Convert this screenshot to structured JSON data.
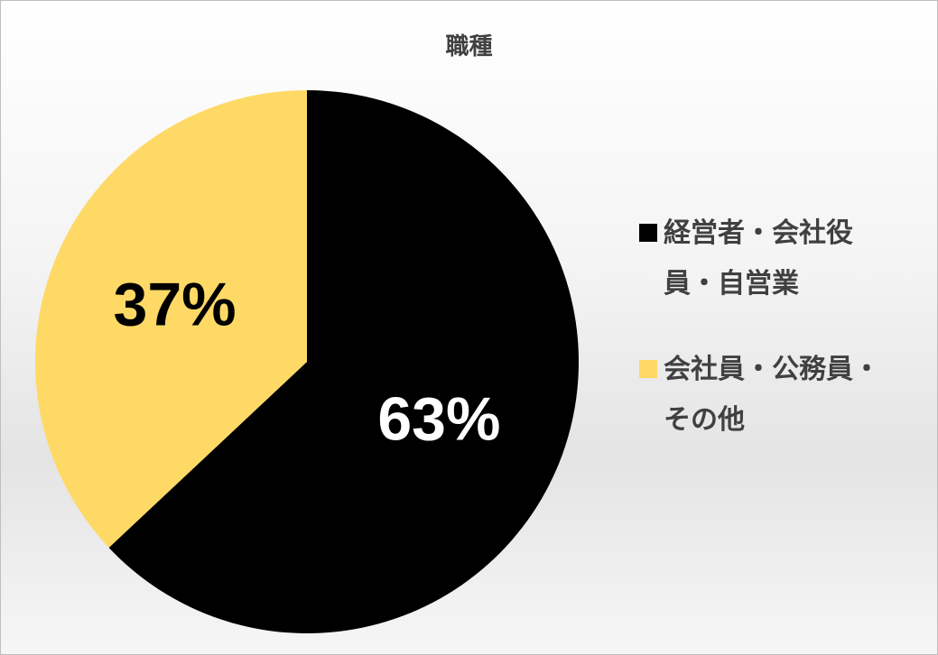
{
  "chart_data": {
    "type": "pie",
    "title": "職種",
    "slices": [
      {
        "label": "経営者・会社役員・自営業",
        "value": 63,
        "display": "63%",
        "color": "#000000",
        "label_color": "#ffffff"
      },
      {
        "label": "会社員・公務員・その他",
        "value": 37,
        "display": "37%",
        "color": "#ffd966",
        "label_color": "#000000"
      }
    ],
    "start_angle_deg": 0,
    "direction": "clockwise",
    "legend_position": "right"
  },
  "legend": {
    "item1_line1": "経営者・会社役",
    "item1_line2": "員・自営業",
    "item2_line1": "会社員・公務員・",
    "item2_line2": "その他"
  }
}
